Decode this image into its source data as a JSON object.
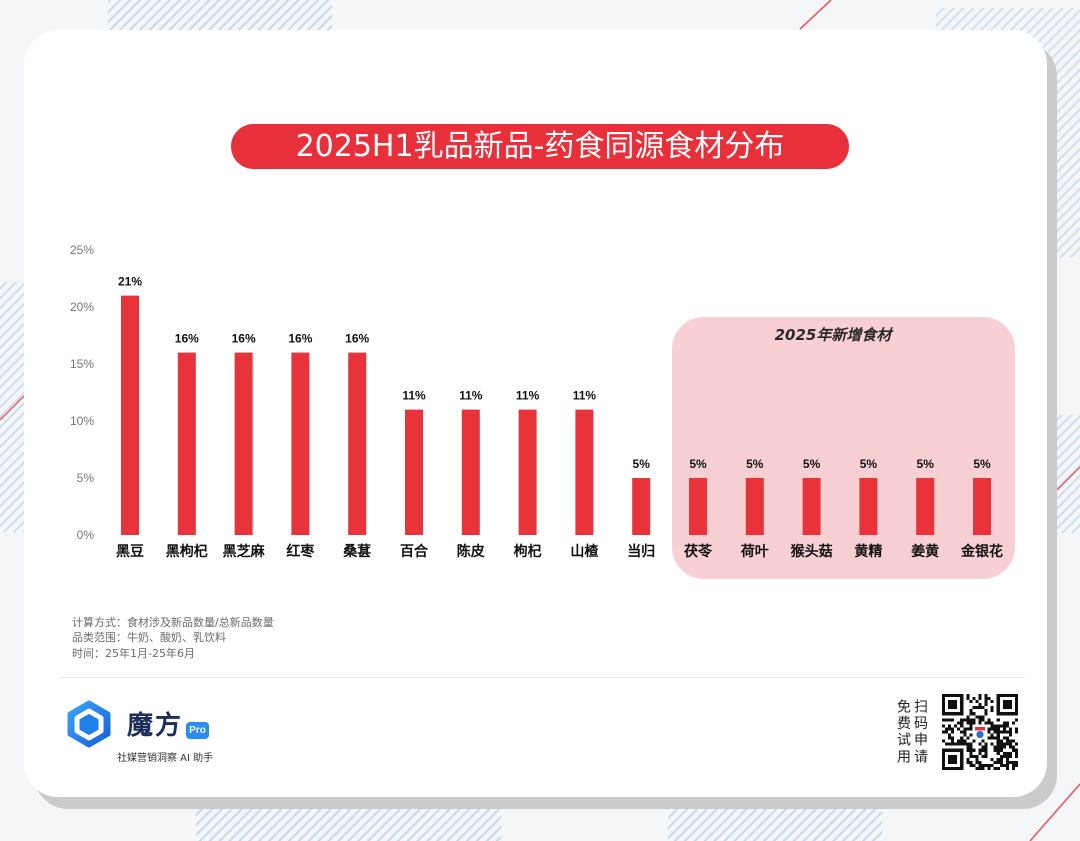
{
  "colors": {
    "accent": "#E8303A",
    "brand": "#1E7FE0"
  },
  "chart_data": {
    "type": "bar",
    "title": "2025H1乳品新品-药食同源食材分布",
    "unit": "%",
    "ylim": [
      0,
      25
    ],
    "yticks": [
      0,
      5,
      10,
      15,
      20,
      25
    ],
    "grid": false,
    "data_labels": true,
    "bar_color": "#E8333A",
    "categories": [
      "黑豆",
      "黑枸杞",
      "黑芝麻",
      "红枣",
      "桑葚",
      "百合",
      "陈皮",
      "枸杞",
      "山楂",
      "当归",
      "茯苓",
      "荷叶",
      "猴头菇",
      "黄精",
      "姜黄",
      "金银花"
    ],
    "values": [
      21,
      16,
      16,
      16,
      16,
      11,
      11,
      11,
      11,
      5,
      5,
      5,
      5,
      5,
      5,
      5
    ],
    "highlight": {
      "title": "2025年新增食材",
      "from_index": 10,
      "to_index": 15,
      "color": "#F8CFD2"
    }
  },
  "notes": {
    "method": "计算方式：食材涉及新品数量/总新品数量",
    "scope": "品类范围：牛奶、酸奶、乳饮料",
    "period": "时间：25年1月-25年6月"
  },
  "brand": {
    "logo_icon": "hexagon-logo-icon",
    "name": "魔方",
    "badge": "Pro",
    "tagline": "社媒营销洞察 AI 助手"
  },
  "cta": {
    "line1": "扫码申请",
    "line2": "免费试用",
    "qr_icon": "qr-code-icon"
  }
}
